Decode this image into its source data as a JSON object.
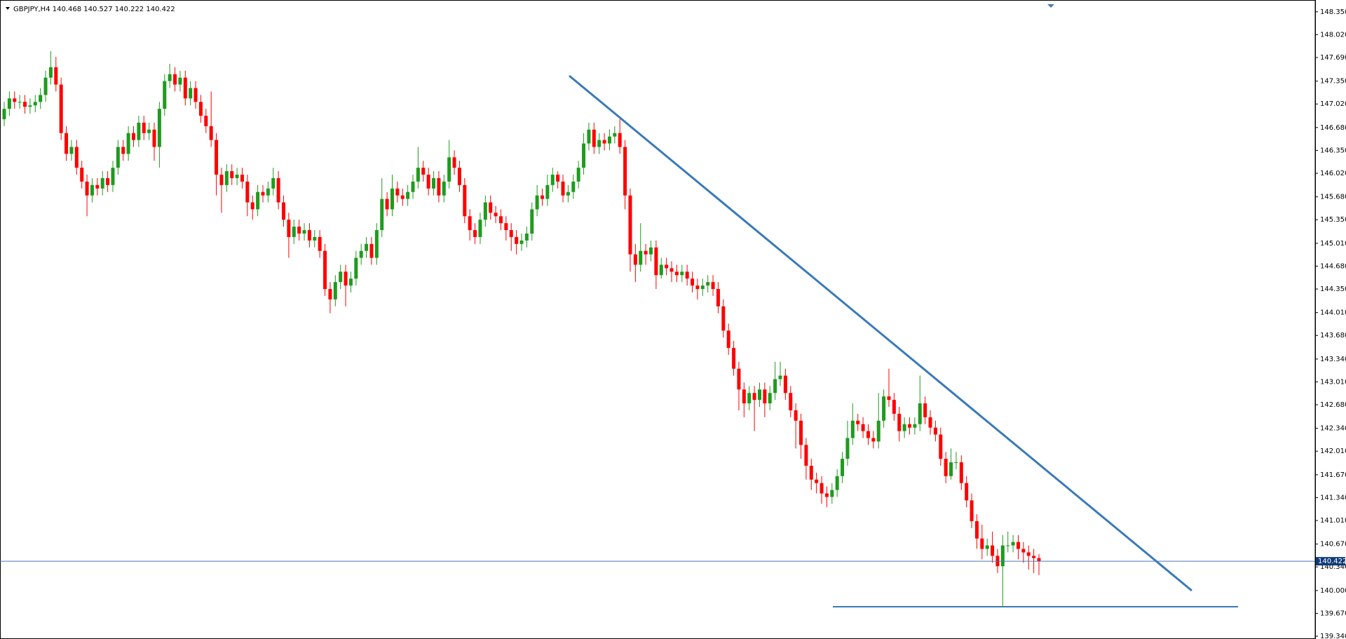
{
  "chart_data": {
    "type": "candlestick",
    "title": "GBPJPY,H4  140.468 140.527 140.222 140.422",
    "up_color": "#1e9b1e",
    "down_color": "#ff0000",
    "ylim": [
      139.3,
      148.5
    ],
    "yticks": [
      {
        "value": 148.35,
        "label": "148.350"
      },
      {
        "value": 148.02,
        "label": "148.020"
      },
      {
        "value": 147.69,
        "label": "147.690"
      },
      {
        "value": 147.35,
        "label": "147.350"
      },
      {
        "value": 147.02,
        "label": "147.020"
      },
      {
        "value": 146.68,
        "label": "146.680"
      },
      {
        "value": 146.35,
        "label": "146.350"
      },
      {
        "value": 146.02,
        "label": "146.020"
      },
      {
        "value": 145.68,
        "label": "145.680"
      },
      {
        "value": 145.35,
        "label": "145.350"
      },
      {
        "value": 145.01,
        "label": "145.010"
      },
      {
        "value": 144.68,
        "label": "144.680"
      },
      {
        "value": 144.35,
        "label": "144.350"
      },
      {
        "value": 144.01,
        "label": "144.010"
      },
      {
        "value": 143.68,
        "label": "143.680"
      },
      {
        "value": 143.34,
        "label": "143.340"
      },
      {
        "value": 143.01,
        "label": "143.010"
      },
      {
        "value": 142.68,
        "label": "142.680"
      },
      {
        "value": 142.34,
        "label": "142.340"
      },
      {
        "value": 142.01,
        "label": "142.010"
      },
      {
        "value": 141.67,
        "label": "141.670"
      },
      {
        "value": 141.34,
        "label": "141.340"
      },
      {
        "value": 141.01,
        "label": "141.010"
      },
      {
        "value": 140.67,
        "label": "140.670"
      },
      {
        "value": 140.34,
        "label": "140.340"
      },
      {
        "value": 140.0,
        "label": "140.000"
      },
      {
        "value": 139.67,
        "label": "139.670"
      },
      {
        "value": 139.34,
        "label": "139.340"
      }
    ],
    "last_price": 140.422,
    "open": [
      146.8,
      146.95,
      147.1,
      147.05,
      147.05,
      146.98,
      147.0,
      147.05,
      147.15,
      147.4,
      147.55,
      147.3,
      146.6,
      146.3,
      146.4,
      146.1,
      145.9,
      145.7,
      145.85,
      145.8,
      145.95,
      145.85,
      146.1,
      146.4,
      146.3,
      146.6,
      146.5,
      146.75,
      146.6,
      146.65,
      146.4,
      146.95,
      147.35,
      147.45,
      147.3,
      147.4,
      147.1,
      147.25,
      147.05,
      146.85,
      146.7,
      146.5,
      146.0,
      145.85,
      146.05,
      145.95,
      146.0,
      145.9,
      145.6,
      145.5,
      145.75,
      145.7,
      145.8,
      145.95,
      145.6,
      145.35,
      145.1,
      145.25,
      145.15,
      145.2,
      145.05,
      145.1,
      144.9,
      144.35,
      144.2,
      144.45,
      144.6,
      144.4,
      144.5,
      144.8,
      144.9,
      145.0,
      144.8,
      145.2,
      145.65,
      145.5,
      145.8,
      145.7,
      145.65,
      145.75,
      145.9,
      146.1,
      146.0,
      145.8,
      145.95,
      145.7,
      145.9,
      146.25,
      146.1,
      145.85,
      145.4,
      145.2,
      145.1,
      145.35,
      145.6,
      145.45,
      145.4,
      145.3,
      145.2,
      145.1,
      145.0,
      145.05,
      145.15,
      145.5,
      145.7,
      145.65,
      145.85,
      146.0,
      145.9,
      145.7,
      145.75,
      145.9,
      146.1,
      146.45,
      146.65,
      146.4,
      146.5,
      146.45,
      146.55,
      146.6,
      146.4,
      145.7,
      144.85,
      144.7,
      144.9,
      144.85,
      144.95,
      144.55,
      144.7,
      144.65,
      144.6,
      144.55,
      144.6,
      144.5,
      144.4,
      144.35,
      144.4,
      144.45,
      144.35,
      144.1,
      143.75,
      143.5,
      143.2,
      142.9,
      142.7,
      142.85,
      142.75,
      142.9,
      142.7,
      142.85,
      143.05,
      143.1,
      142.85,
      142.6,
      142.45,
      142.1,
      141.8,
      141.6,
      141.55,
      141.4,
      141.35,
      141.45,
      141.65,
      141.9,
      142.2,
      142.45,
      142.4,
      142.3,
      142.2,
      142.15,
      142.45,
      142.8,
      142.75,
      142.55,
      142.3,
      142.4,
      142.35,
      142.4,
      142.7,
      142.5,
      142.35,
      142.25,
      141.9,
      141.65,
      141.85,
      141.85,
      141.55,
      141.3,
      141.0,
      140.75,
      140.6,
      140.65,
      140.5,
      140.35,
      140.65,
      140.65,
      140.7,
      140.6,
      140.55,
      140.5,
      140.468
    ],
    "high": [
      147.05,
      147.2,
      147.2,
      147.15,
      147.15,
      147.1,
      147.15,
      147.25,
      147.5,
      147.78,
      147.7,
      147.4,
      146.7,
      146.5,
      146.5,
      146.2,
      146.0,
      145.95,
      145.95,
      146.05,
      146.05,
      146.2,
      146.5,
      146.5,
      146.7,
      146.7,
      146.85,
      146.85,
      146.75,
      146.75,
      147.05,
      147.45,
      147.6,
      147.55,
      147.5,
      147.5,
      147.35,
      147.35,
      147.15,
      146.95,
      147.2,
      146.6,
      146.1,
      146.15,
      146.15,
      146.1,
      146.1,
      146.0,
      145.7,
      145.85,
      145.85,
      145.9,
      146.1,
      146.05,
      145.7,
      145.45,
      145.35,
      145.35,
      145.3,
      145.3,
      145.2,
      145.2,
      145.0,
      144.45,
      144.55,
      144.7,
      144.7,
      144.6,
      144.9,
      145.0,
      145.1,
      145.1,
      145.3,
      145.95,
      145.75,
      146.0,
      145.9,
      145.8,
      145.85,
      146.0,
      146.4,
      146.2,
      146.1,
      146.05,
      146.05,
      146.0,
      146.5,
      146.35,
      146.2,
      145.95,
      145.5,
      145.3,
      145.45,
      145.7,
      145.7,
      145.55,
      145.5,
      145.4,
      145.3,
      145.2,
      145.15,
      145.25,
      145.6,
      145.85,
      145.8,
      146.0,
      146.1,
      146.05,
      146.0,
      145.85,
      146.0,
      146.2,
      146.6,
      146.75,
      146.75,
      146.6,
      146.6,
      146.65,
      146.7,
      146.8,
      146.5,
      145.8,
      145.0,
      145.3,
      145.0,
      145.05,
      145.05,
      144.8,
      144.8,
      144.75,
      144.7,
      144.7,
      144.7,
      144.6,
      144.5,
      144.5,
      144.55,
      144.55,
      144.45,
      144.2,
      143.85,
      143.6,
      143.3,
      143.0,
      142.95,
      142.95,
      143.0,
      143.0,
      142.95,
      143.3,
      143.3,
      143.2,
      142.95,
      142.7,
      142.55,
      142.2,
      141.9,
      141.7,
      141.65,
      141.5,
      141.55,
      141.75,
      142.0,
      142.45,
      142.7,
      142.55,
      142.5,
      142.4,
      142.3,
      142.85,
      142.9,
      143.2,
      142.85,
      142.65,
      142.5,
      142.5,
      142.5,
      143.1,
      142.8,
      142.6,
      142.45,
      142.35,
      142.0,
      142.05,
      142.0,
      141.95,
      141.65,
      141.4,
      141.1,
      140.95,
      140.75,
      140.85,
      140.6,
      140.8,
      140.85,
      140.8,
      140.8,
      140.7,
      140.65,
      140.6,
      140.527
    ],
    "low": [
      146.7,
      146.85,
      146.95,
      146.95,
      146.88,
      146.88,
      146.9,
      146.95,
      147.05,
      147.3,
      147.2,
      146.5,
      146.2,
      146.2,
      146.0,
      145.8,
      145.4,
      145.6,
      145.7,
      145.7,
      145.75,
      145.75,
      146.0,
      146.2,
      146.2,
      146.4,
      146.4,
      146.5,
      146.5,
      146.2,
      146.1,
      146.85,
      147.25,
      147.2,
      147.2,
      147.0,
      147.0,
      146.95,
      146.75,
      146.6,
      146.4,
      145.7,
      145.45,
      145.75,
      145.85,
      145.85,
      145.8,
      145.4,
      145.35,
      145.4,
      145.6,
      145.6,
      145.7,
      145.5,
      145.25,
      144.8,
      145.0,
      145.05,
      145.05,
      144.95,
      144.95,
      144.8,
      144.25,
      144.0,
      144.1,
      144.35,
      144.1,
      144.3,
      144.4,
      144.7,
      144.8,
      144.7,
      144.7,
      145.1,
      145.4,
      145.4,
      145.6,
      145.55,
      145.55,
      145.65,
      145.8,
      145.9,
      145.7,
      145.7,
      145.6,
      145.6,
      145.8,
      146.0,
      145.75,
      145.3,
      145.05,
      145.0,
      145.0,
      145.25,
      145.35,
      145.3,
      145.2,
      145.05,
      144.9,
      144.85,
      144.9,
      144.95,
      145.05,
      145.4,
      145.55,
      145.55,
      145.75,
      145.8,
      145.6,
      145.6,
      145.65,
      145.8,
      146.0,
      146.35,
      146.3,
      146.3,
      146.35,
      146.35,
      146.45,
      146.3,
      145.5,
      144.6,
      144.45,
      144.6,
      144.7,
      144.75,
      144.35,
      144.5,
      144.55,
      144.45,
      144.45,
      144.45,
      144.4,
      144.3,
      144.2,
      144.25,
      144.3,
      144.25,
      144.0,
      143.65,
      143.4,
      143.1,
      142.6,
      142.5,
      142.6,
      142.3,
      142.65,
      142.5,
      142.6,
      142.75,
      142.95,
      142.75,
      142.5,
      142.05,
      141.9,
      141.6,
      141.45,
      141.4,
      141.25,
      141.2,
      141.25,
      141.35,
      141.55,
      141.8,
      142.1,
      142.3,
      142.2,
      142.1,
      142.05,
      142.05,
      142.35,
      142.65,
      142.45,
      142.15,
      142.2,
      142.25,
      142.25,
      142.3,
      142.4,
      142.25,
      142.15,
      141.8,
      141.55,
      141.6,
      141.75,
      141.45,
      141.2,
      140.9,
      140.6,
      140.45,
      140.5,
      140.4,
      140.25,
      139.77,
      140.55,
      140.55,
      140.45,
      140.4,
      140.3,
      140.25,
      140.222
    ],
    "close": [
      146.95,
      147.1,
      147.05,
      147.05,
      146.98,
      147.0,
      147.05,
      147.15,
      147.4,
      147.55,
      147.3,
      146.6,
      146.3,
      146.4,
      146.1,
      145.9,
      145.7,
      145.85,
      145.8,
      145.95,
      145.85,
      146.1,
      146.4,
      146.3,
      146.6,
      146.5,
      146.75,
      146.6,
      146.65,
      146.4,
      146.95,
      147.35,
      147.45,
      147.3,
      147.4,
      147.1,
      147.25,
      147.05,
      146.85,
      146.7,
      146.5,
      146.0,
      145.85,
      146.05,
      145.95,
      146.0,
      145.9,
      145.6,
      145.5,
      145.75,
      145.7,
      145.8,
      145.95,
      145.6,
      145.35,
      145.1,
      145.25,
      145.15,
      145.2,
      145.05,
      145.1,
      144.9,
      144.35,
      144.2,
      144.45,
      144.6,
      144.4,
      144.5,
      144.8,
      144.9,
      145.0,
      144.8,
      145.2,
      145.65,
      145.5,
      145.8,
      145.7,
      145.65,
      145.75,
      145.9,
      146.1,
      146.0,
      145.8,
      145.95,
      145.7,
      145.9,
      146.25,
      146.1,
      145.85,
      145.4,
      145.2,
      145.1,
      145.35,
      145.6,
      145.45,
      145.4,
      145.3,
      145.2,
      145.1,
      145.0,
      145.05,
      145.15,
      145.5,
      145.7,
      145.65,
      145.85,
      146.0,
      145.9,
      145.7,
      145.75,
      145.9,
      146.1,
      146.45,
      146.65,
      146.4,
      146.5,
      146.45,
      146.55,
      146.6,
      146.4,
      145.7,
      144.85,
      144.7,
      144.9,
      144.85,
      144.95,
      144.55,
      144.7,
      144.65,
      144.6,
      144.55,
      144.6,
      144.5,
      144.4,
      144.35,
      144.4,
      144.45,
      144.35,
      144.1,
      143.75,
      143.5,
      143.2,
      142.9,
      142.7,
      142.85,
      142.75,
      142.9,
      142.7,
      142.85,
      143.05,
      143.1,
      142.85,
      142.6,
      142.45,
      142.1,
      141.8,
      141.6,
      141.55,
      141.4,
      141.35,
      141.45,
      141.65,
      141.9,
      142.2,
      142.45,
      142.4,
      142.3,
      142.2,
      142.15,
      142.45,
      142.8,
      142.75,
      142.55,
      142.3,
      142.4,
      142.35,
      142.4,
      142.7,
      142.5,
      142.35,
      142.25,
      141.9,
      141.65,
      141.85,
      141.85,
      141.55,
      141.3,
      141.0,
      140.75,
      140.6,
      140.65,
      140.5,
      140.35,
      140.65,
      140.65,
      140.7,
      140.6,
      140.55,
      140.5,
      140.468,
      140.422
    ]
  }
}
